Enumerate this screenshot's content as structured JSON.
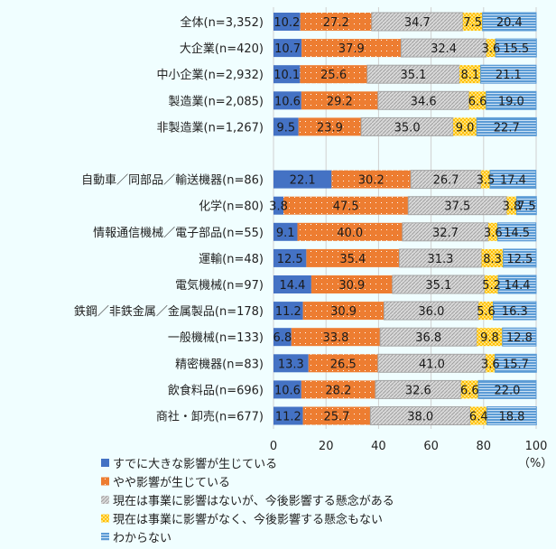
{
  "chart_data": {
    "type": "bar",
    "orientation": "horizontal",
    "stacked": true,
    "unit_label": "（%）",
    "xlim": [
      0,
      100
    ],
    "xticks": [
      0,
      20,
      40,
      60,
      80,
      100
    ],
    "grid": true,
    "legend_position": "bottom-left",
    "categories": [
      "全体(n=3,352)",
      "大企業(n=420)",
      "中小企業(n=2,932)",
      "製造業(n=2,085)",
      "非製造業(n=1,267)",
      "自動車／同部品／輸送機器(n=86)",
      "化学(n=80)",
      "情報通信機械／電子部品(n=55)",
      "運輸(n=48)",
      "電気機械(n=97)",
      "鉄鋼／非鉄金属／金属製品(n=178)",
      "一般機械(n=133)",
      "精密機器(n=83)",
      "飲食料品(n=696)",
      "商社・卸売(n=677)"
    ],
    "series": [
      {
        "name": "すでに大きな影響が生じている",
        "color": "#4472c4",
        "pattern": "solid",
        "values": [
          10.2,
          10.7,
          10.1,
          10.6,
          9.5,
          22.1,
          3.8,
          9.1,
          12.5,
          14.4,
          11.2,
          6.8,
          13.3,
          10.6,
          11.2
        ]
      },
      {
        "name": "やや影響が生じている",
        "color": "#ed7d31",
        "pattern": "dots",
        "values": [
          27.2,
          37.9,
          25.6,
          29.2,
          23.9,
          30.2,
          47.5,
          40.0,
          35.4,
          30.9,
          30.9,
          33.8,
          26.5,
          28.2,
          25.7
        ]
      },
      {
        "name": "現在は事業に影響はないが、今後影響する懸念がある",
        "color": "#bfbfbf",
        "pattern": "diagonal",
        "values": [
          34.7,
          32.4,
          35.1,
          34.6,
          35.0,
          26.7,
          37.5,
          32.7,
          31.3,
          35.1,
          36.0,
          36.8,
          41.0,
          32.6,
          38.0
        ]
      },
      {
        "name": "現在は事業に影響がなく、今後影響する懸念もない",
        "color": "#ffc000",
        "pattern": "checker",
        "values": [
          7.5,
          3.6,
          8.1,
          6.6,
          9.0,
          3.5,
          3.8,
          3.6,
          8.3,
          5.2,
          5.6,
          9.8,
          3.6,
          6.6,
          6.4
        ]
      },
      {
        "name": "わからない",
        "color": "#5b9bd5",
        "pattern": "hstripes",
        "values": [
          20.4,
          15.5,
          21.1,
          19.0,
          22.7,
          17.4,
          7.5,
          14.5,
          12.5,
          14.4,
          16.3,
          12.8,
          15.7,
          22.0,
          18.8
        ]
      }
    ]
  }
}
